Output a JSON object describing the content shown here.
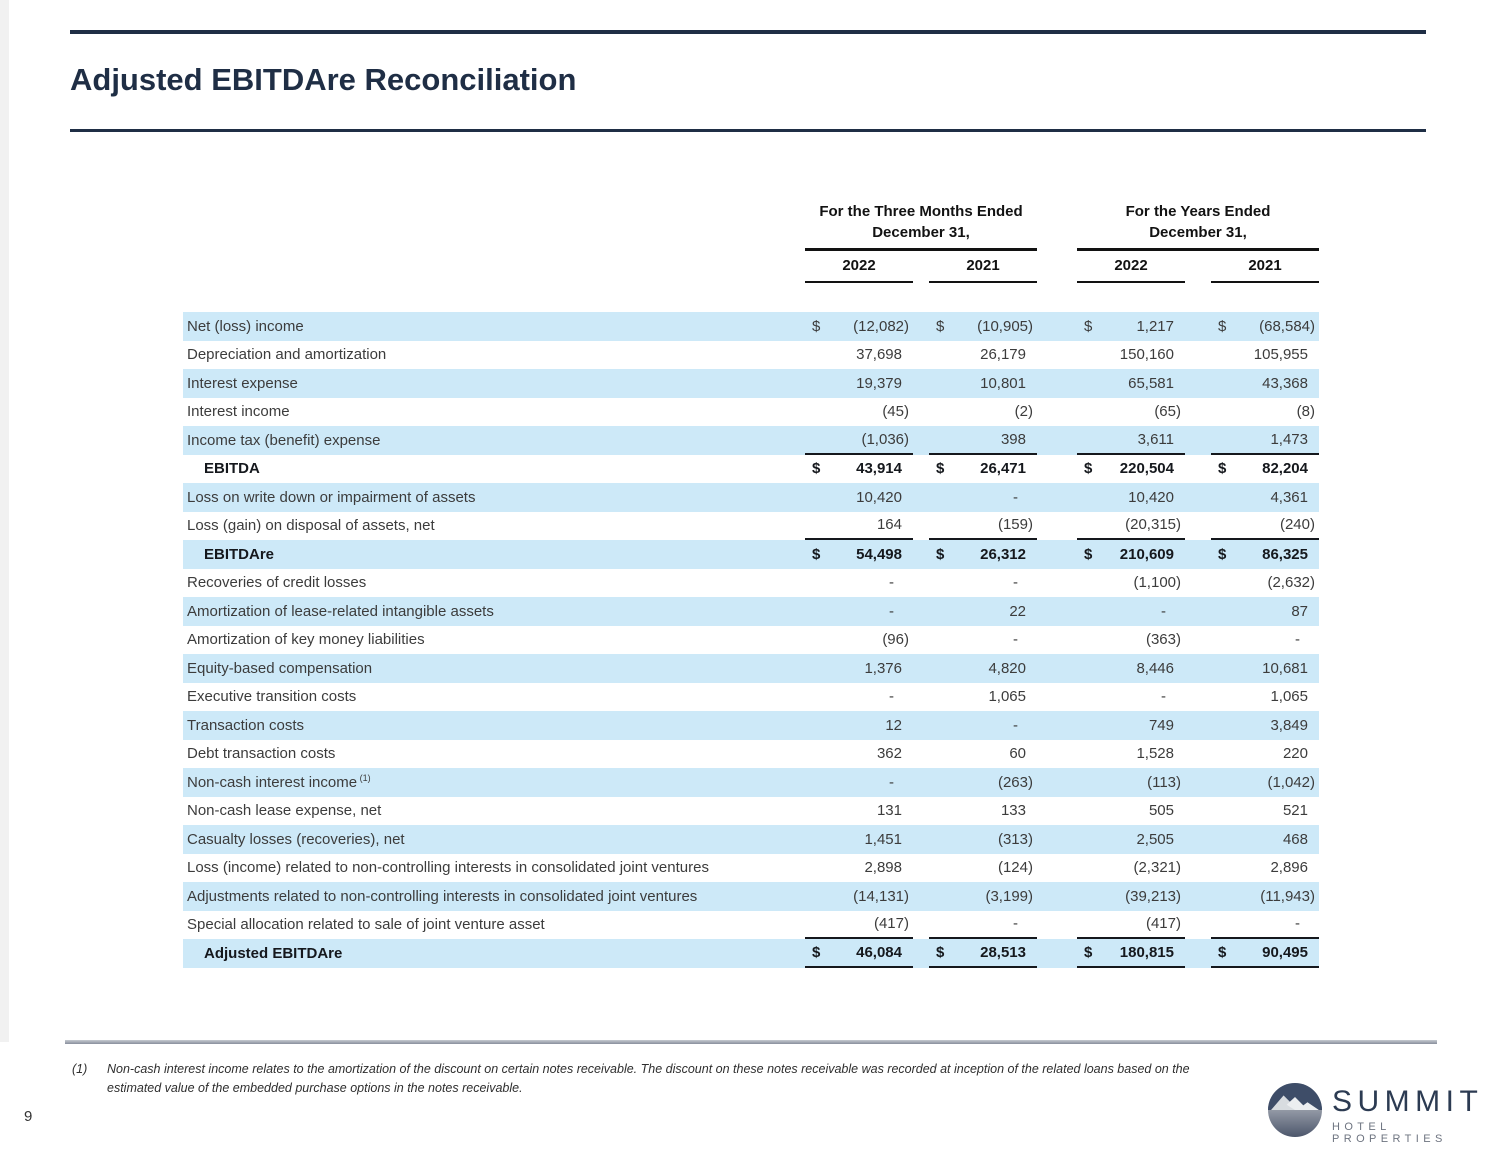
{
  "page": {
    "title": "Adjusted EBITDAre Reconciliation",
    "page_number": "9"
  },
  "table": {
    "currency_symbol": "$",
    "header": {
      "groups": [
        {
          "line1": "For the Three Months Ended",
          "line2": "December 31,",
          "years": [
            "2022",
            "2021"
          ]
        },
        {
          "line1": "For the Years Ended",
          "line2": "December 31,",
          "years": [
            "2022",
            "2021"
          ]
        }
      ]
    },
    "rows": [
      {
        "label": "Net (loss) income",
        "shaded": true,
        "dollar": true,
        "values": [
          "(12,082)",
          "(10,905)",
          "1,217",
          "(68,584)"
        ]
      },
      {
        "label": "Depreciation and amortization",
        "shaded": false,
        "values": [
          "37,698",
          "26,179",
          "150,160",
          "105,955"
        ]
      },
      {
        "label": "Interest expense",
        "shaded": true,
        "values": [
          "19,379",
          "10,801",
          "65,581",
          "43,368"
        ]
      },
      {
        "label": "Interest income",
        "shaded": false,
        "values": [
          "(45)",
          "(2)",
          "(65)",
          "(8)"
        ]
      },
      {
        "label": "Income tax (benefit) expense",
        "shaded": true,
        "underline": true,
        "values": [
          "(1,036)",
          "398",
          "3,611",
          "1,473"
        ]
      },
      {
        "label": "EBITDA",
        "shaded": false,
        "bold": true,
        "total": true,
        "dollar": true,
        "values": [
          "43,914",
          "26,471",
          "220,504",
          "82,204"
        ]
      },
      {
        "label": "Loss on write down or impairment of assets",
        "shaded": true,
        "values": [
          "10,420",
          "-",
          "10,420",
          "4,361"
        ]
      },
      {
        "label": "Loss (gain) on disposal of assets, net",
        "shaded": false,
        "underline": true,
        "values": [
          "164",
          "(159)",
          "(20,315)",
          "(240)"
        ]
      },
      {
        "label": "EBITDAre",
        "shaded": true,
        "bold": true,
        "total": true,
        "dollar": true,
        "values": [
          "54,498",
          "26,312",
          "210,609",
          "86,325"
        ]
      },
      {
        "label": "Recoveries of credit losses",
        "shaded": false,
        "values": [
          "-",
          "-",
          "(1,100)",
          "(2,632)"
        ]
      },
      {
        "label": "Amortization of lease-related intangible assets",
        "shaded": true,
        "values": [
          "-",
          "22",
          "-",
          "87"
        ]
      },
      {
        "label": "Amortization of key money liabilities",
        "shaded": false,
        "values": [
          "(96)",
          "-",
          "(363)",
          "-"
        ]
      },
      {
        "label": "Equity-based compensation",
        "shaded": true,
        "values": [
          "1,376",
          "4,820",
          "8,446",
          "10,681"
        ]
      },
      {
        "label": "Executive transition costs",
        "shaded": false,
        "values": [
          "-",
          "1,065",
          "-",
          "1,065"
        ]
      },
      {
        "label": "Transaction costs",
        "shaded": true,
        "values": [
          "12",
          "-",
          "749",
          "3,849"
        ]
      },
      {
        "label": "Debt transaction costs",
        "shaded": false,
        "values": [
          "362",
          "60",
          "1,528",
          "220"
        ]
      },
      {
        "label": "Non-cash interest income",
        "sup": "(1)",
        "shaded": true,
        "values": [
          "-",
          "(263)",
          "(113)",
          "(1,042)"
        ]
      },
      {
        "label": "Non-cash lease expense, net",
        "shaded": false,
        "values": [
          "131",
          "133",
          "505",
          "521"
        ]
      },
      {
        "label": "Casualty losses (recoveries), net",
        "shaded": true,
        "values": [
          "1,451",
          "(313)",
          "2,505",
          "468"
        ]
      },
      {
        "label": "Loss (income) related to non-controlling interests in consolidated joint ventures",
        "shaded": false,
        "values": [
          "2,898",
          "(124)",
          "(2,321)",
          "2,896"
        ]
      },
      {
        "label": "Adjustments related to non-controlling interests in consolidated joint ventures",
        "shaded": true,
        "values": [
          "(14,131)",
          "(3,199)",
          "(39,213)",
          "(11,943)"
        ]
      },
      {
        "label": "Special allocation related to sale of joint venture asset",
        "shaded": false,
        "underline": true,
        "values": [
          "(417)",
          "-",
          "(417)",
          "-"
        ]
      },
      {
        "label": "Adjusted EBITDAre",
        "shaded": true,
        "bold": true,
        "total": true,
        "dollar": true,
        "underline": true,
        "values": [
          "46,084",
          "28,513",
          "180,815",
          "90,495"
        ]
      }
    ]
  },
  "footnote": {
    "marker": "(1)",
    "text": "Non-cash interest income relates to the amortization of the discount on certain notes receivable. The discount on these notes receivable was recorded at inception of the related loans based on the estimated value of the embedded purchase options in the notes receivable."
  },
  "logo": {
    "name": "SUMMIT",
    "subtitle": "HOTEL PROPERTIES"
  }
}
